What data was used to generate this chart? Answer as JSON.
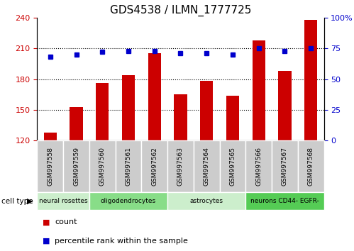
{
  "title": "GDS4538 / ILMN_1777725",
  "samples": [
    "GSM997558",
    "GSM997559",
    "GSM997560",
    "GSM997561",
    "GSM997562",
    "GSM997563",
    "GSM997564",
    "GSM997565",
    "GSM997566",
    "GSM997567",
    "GSM997568"
  ],
  "counts": [
    128,
    153,
    176,
    184,
    205,
    165,
    178,
    164,
    218,
    188,
    238
  ],
  "percentiles": [
    68,
    70,
    72,
    73,
    73,
    71,
    71,
    70,
    75,
    73,
    75
  ],
  "ylim_left": [
    120,
    240
  ],
  "ylim_right": [
    0,
    100
  ],
  "yticks_left": [
    120,
    150,
    180,
    210,
    240
  ],
  "yticks_right": [
    0,
    25,
    50,
    75,
    100
  ],
  "bar_color": "#cc0000",
  "dot_color": "#0000cc",
  "cell_types": [
    {
      "label": "neural rosettes",
      "start": 0,
      "end": 2,
      "color": "#cceecc"
    },
    {
      "label": "oligodendrocytes",
      "start": 2,
      "end": 5,
      "color": "#88dd88"
    },
    {
      "label": "astrocytes",
      "start": 5,
      "end": 8,
      "color": "#cceecc"
    },
    {
      "label": "neurons CD44- EGFR-",
      "start": 8,
      "end": 11,
      "color": "#55cc55"
    }
  ],
  "legend_count_label": "count",
  "legend_pct_label": "percentile rank within the sample",
  "cell_type_label": "cell type",
  "bg_color": "#ffffff",
  "tick_bg_color": "#cccccc"
}
